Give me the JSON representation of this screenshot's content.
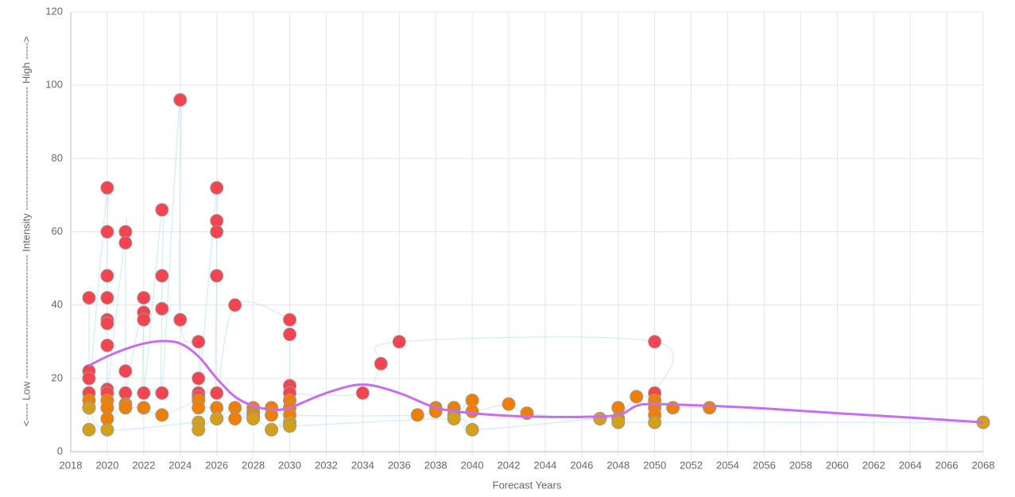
{
  "chart_data": {
    "type": "scatter",
    "xlabel": "Forecast Years",
    "ylabel": "<----- Low ------------------------------------ Intensity ------------------------------------ High ----->",
    "xlim": [
      2018,
      2068
    ],
    "xticks": [
      2018,
      2020,
      2022,
      2024,
      2026,
      2028,
      2030,
      2032,
      2034,
      2036,
      2038,
      2040,
      2042,
      2044,
      2046,
      2048,
      2050,
      2052,
      2054,
      2056,
      2058,
      2060,
      2062,
      2064,
      2066,
      2068
    ],
    "ylim": [
      0,
      120
    ],
    "yticks": [
      0,
      20,
      40,
      60,
      80,
      100,
      120
    ],
    "grid": true,
    "series": [
      {
        "color": "#f54450",
        "x": [
          2019,
          2019,
          2019,
          2019,
          2020,
          2020,
          2020,
          2020,
          2020,
          2020,
          2020,
          2020,
          2020,
          2021,
          2021,
          2021,
          2021,
          2022,
          2022,
          2022,
          2022,
          2023,
          2023,
          2023,
          2023,
          2024,
          2024,
          2025,
          2025,
          2025,
          2025,
          2026,
          2026,
          2026,
          2026,
          2026,
          2027,
          2030,
          2030,
          2030,
          2030,
          2034,
          2035,
          2036,
          2050,
          2050
        ],
        "values": [
          42,
          22,
          20,
          16,
          72,
          60,
          48,
          42,
          36,
          35,
          29,
          17,
          16,
          60,
          57,
          22,
          16,
          42,
          38,
          36,
          16,
          66,
          48,
          39,
          16,
          96,
          36,
          30,
          20,
          16,
          15,
          72,
          63,
          60,
          48,
          16,
          40,
          36,
          32,
          18,
          16,
          16,
          24,
          30,
          30,
          16
        ]
      },
      {
        "color": "#f07f00",
        "x": [
          2019,
          2019,
          2020,
          2020,
          2020,
          2021,
          2021,
          2022,
          2023,
          2025,
          2025,
          2026,
          2026,
          2027,
          2027,
          2028,
          2028,
          2028,
          2029,
          2029,
          2030,
          2030,
          2030,
          2037,
          2038,
          2038,
          2039,
          2039,
          2040,
          2040,
          2042,
          2043,
          2047,
          2048,
          2048,
          2049,
          2050,
          2050,
          2050,
          2051,
          2053
        ],
        "values": [
          14,
          12,
          14,
          12,
          9,
          13,
          12,
          12,
          10,
          14,
          12,
          12,
          9,
          12,
          9,
          12,
          11,
          10,
          12,
          10,
          14,
          12,
          10,
          10,
          12,
          11,
          12,
          10,
          14,
          11,
          13,
          10.5,
          9,
          12,
          9,
          15,
          14,
          12,
          10,
          12,
          12
        ]
      },
      {
        "color": "#d4a017",
        "x": [
          2019,
          2019,
          2020,
          2025,
          2025,
          2026,
          2028,
          2029,
          2030,
          2030,
          2039,
          2040,
          2047,
          2048,
          2050,
          2068
        ],
        "values": [
          6,
          12,
          6,
          8,
          6,
          9,
          9,
          6,
          8,
          7,
          9,
          6,
          9,
          8,
          8,
          8
        ]
      }
    ],
    "trend": {
      "color": "#c86cf0",
      "x": [
        2019,
        2020,
        2021,
        2022,
        2023,
        2024,
        2025,
        2026,
        2027,
        2028,
        2029,
        2030,
        2032,
        2034,
        2036,
        2038,
        2040,
        2042,
        2044,
        2046,
        2048,
        2049,
        2050,
        2053,
        2056,
        2060,
        2064,
        2068
      ],
      "values": [
        23.5,
        26,
        28,
        29.5,
        30.2,
        29.5,
        26,
        20,
        15,
        12.5,
        11.5,
        12,
        16,
        18.3,
        16,
        12,
        10.5,
        9.8,
        9.5,
        9.5,
        10,
        12.5,
        13,
        12.5,
        11.8,
        10.5,
        9.3,
        8
      ]
    }
  }
}
